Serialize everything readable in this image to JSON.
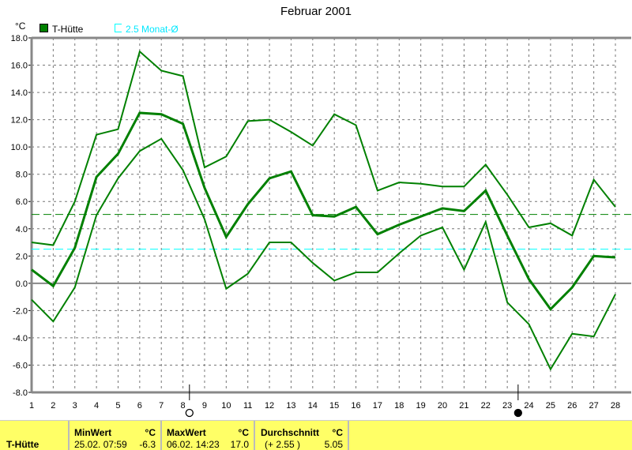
{
  "title": "Februar 2001",
  "legend": [
    {
      "label": "T-Hütte",
      "color": "#008000"
    },
    {
      "label": "2.5 Monat-Ø",
      "color": "#00ffff"
    }
  ],
  "chart_data": {
    "type": "line",
    "title": "Februar 2001",
    "ylabel": "°C",
    "ylim": [
      -8,
      18
    ],
    "yticks": [
      "18.0",
      "16.0",
      "14.0",
      "12.0",
      "10.0",
      "8.0",
      "6.0",
      "4.0",
      "2.0",
      "0.0",
      "-2.0",
      "-4.0",
      "-6.0",
      "-8.0"
    ],
    "x": [
      1,
      2,
      3,
      4,
      5,
      6,
      7,
      8,
      9,
      10,
      11,
      12,
      13,
      14,
      15,
      16,
      17,
      18,
      19,
      20,
      21,
      22,
      23,
      24,
      25,
      26,
      27,
      28
    ],
    "grid": true,
    "series": [
      {
        "role": "max",
        "values": [
          3.0,
          2.8,
          6.0,
          10.9,
          11.3,
          17.0,
          15.6,
          15.2,
          8.5,
          9.3,
          11.9,
          12.0,
          11.1,
          10.1,
          12.4,
          11.6,
          6.8,
          7.4,
          7.3,
          7.1,
          7.1,
          8.7,
          6.5,
          4.1,
          4.4,
          3.5,
          7.6,
          5.6
        ]
      },
      {
        "role": "mean",
        "name": "T-Hütte",
        "values": [
          1.0,
          -0.2,
          2.6,
          7.8,
          9.5,
          12.5,
          12.4,
          11.7,
          7.0,
          3.4,
          5.8,
          7.7,
          8.2,
          5.0,
          4.9,
          5.6,
          3.6,
          4.3,
          4.9,
          5.5,
          5.3,
          6.8,
          3.5,
          0.3,
          -1.9,
          -0.3,
          2.0,
          1.9
        ]
      },
      {
        "role": "min",
        "values": [
          -1.2,
          -2.8,
          -0.3,
          5.0,
          7.7,
          9.7,
          10.6,
          8.3,
          4.7,
          -0.4,
          0.7,
          3.0,
          3.0,
          1.5,
          0.2,
          0.8,
          0.8,
          2.2,
          3.5,
          4.1,
          1.0,
          4.5,
          -1.4,
          -3.0,
          -6.3,
          -3.7,
          -3.9,
          -0.8
        ]
      }
    ],
    "reference_lines": [
      {
        "value": 5.05,
        "color": "#008000",
        "style": "dashed"
      },
      {
        "value": 2.5,
        "color": "#00ffff",
        "style": "dashed"
      }
    ],
    "moon_phases": [
      {
        "day": 8.3,
        "phase": "full"
      },
      {
        "day": 23.5,
        "phase": "new"
      }
    ]
  },
  "panel": {
    "station": "T-Hütte",
    "min": {
      "label": "MinWert",
      "unit": "°C",
      "date": "25.02.  07:59",
      "value": "-6.3"
    },
    "max": {
      "label": "MaxWert",
      "unit": "°C",
      "date": "06.02.  14:23",
      "value": "17.0"
    },
    "avg": {
      "label": "Durchschnitt",
      "unit": "°C",
      "delta": "(+ 2.55 )",
      "value": "5.05"
    }
  }
}
